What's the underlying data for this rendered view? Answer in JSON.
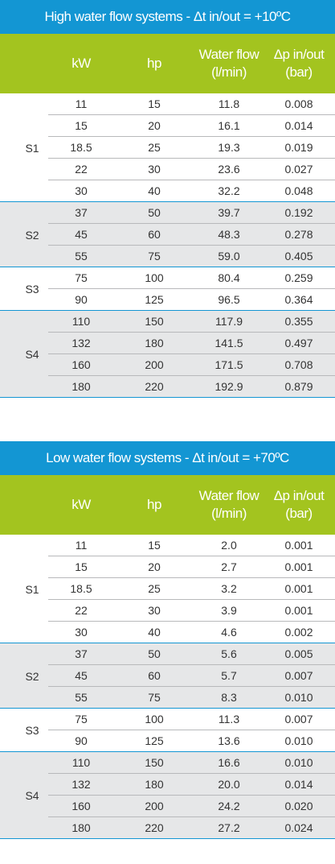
{
  "tables": [
    {
      "title": "High water flow systems - Δt in/out = +10ºC",
      "header": [
        [
          "kW"
        ],
        [
          "hp"
        ],
        [
          "Water flow",
          "(l/min)"
        ],
        [
          "Δp in/out",
          "(bar)"
        ]
      ],
      "groups": [
        {
          "label": "S1",
          "rows": [
            [
              "11",
              "15",
              "11.8",
              "0.008"
            ],
            [
              "15",
              "20",
              "16.1",
              "0.014"
            ],
            [
              "18.5",
              "25",
              "19.3",
              "0.019"
            ],
            [
              "22",
              "30",
              "23.6",
              "0.027"
            ],
            [
              "30",
              "40",
              "32.2",
              "0.048"
            ]
          ]
        },
        {
          "label": "S2",
          "rows": [
            [
              "37",
              "50",
              "39.7",
              "0.192"
            ],
            [
              "45",
              "60",
              "48.3",
              "0.278"
            ],
            [
              "55",
              "75",
              "59.0",
              "0.405"
            ]
          ]
        },
        {
          "label": "S3",
          "rows": [
            [
              "75",
              "100",
              "80.4",
              "0.259"
            ],
            [
              "90",
              "125",
              "96.5",
              "0.364"
            ]
          ]
        },
        {
          "label": "S4",
          "rows": [
            [
              "110",
              "150",
              "117.9",
              "0.355"
            ],
            [
              "132",
              "180",
              "141.5",
              "0.497"
            ],
            [
              "160",
              "200",
              "171.5",
              "0.708"
            ],
            [
              "180",
              "220",
              "192.9",
              "0.879"
            ]
          ]
        }
      ]
    },
    {
      "title": "Low water flow systems - Δt in/out = +70ºC",
      "header": [
        [
          "kW"
        ],
        [
          "hp"
        ],
        [
          "Water flow",
          "(l/min)"
        ],
        [
          "Δp in/out",
          "(bar)"
        ]
      ],
      "groups": [
        {
          "label": "S1",
          "rows": [
            [
              "11",
              "15",
              "2.0",
              "0.001"
            ],
            [
              "15",
              "20",
              "2.7",
              "0.001"
            ],
            [
              "18.5",
              "25",
              "3.2",
              "0.001"
            ],
            [
              "22",
              "30",
              "3.9",
              "0.001"
            ],
            [
              "30",
              "40",
              "4.6",
              "0.002"
            ]
          ]
        },
        {
          "label": "S2",
          "rows": [
            [
              "37",
              "50",
              "5.6",
              "0.005"
            ],
            [
              "45",
              "60",
              "5.7",
              "0.007"
            ],
            [
              "55",
              "75",
              "8.3",
              "0.010"
            ]
          ]
        },
        {
          "label": "S3",
          "rows": [
            [
              "75",
              "100",
              "11.3",
              "0.007"
            ],
            [
              "90",
              "125",
              "13.6",
              "0.010"
            ]
          ]
        },
        {
          "label": "S4",
          "rows": [
            [
              "110",
              "150",
              "16.6",
              "0.010"
            ],
            [
              "132",
              "180",
              "20.0",
              "0.014"
            ],
            [
              "160",
              "200",
              "24.2",
              "0.020"
            ],
            [
              "180",
              "220",
              "27.2",
              "0.024"
            ]
          ]
        }
      ]
    }
  ]
}
